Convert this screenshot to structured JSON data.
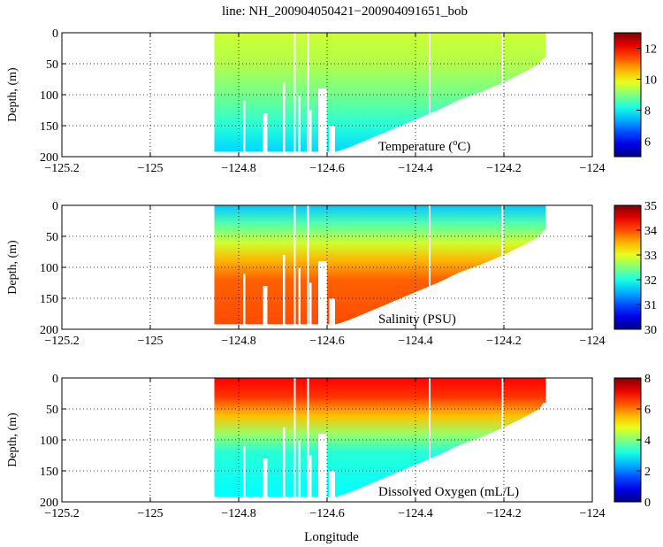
{
  "figure": {
    "title": "line: NH_200904050421−200904091651_bob",
    "xlabel": "Longitude"
  },
  "chart_data": [
    {
      "type": "heatmap",
      "variable": "Temperature",
      "annotation": {
        "pre": "Temperature (",
        "sup": "o",
        "post": "C)"
      },
      "ylabel": "Depth, (m)",
      "xlim": [
        -125.2,
        -124.0
      ],
      "ylim": [
        200,
        0
      ],
      "x_ticks": [
        -125.2,
        -125.0,
        -124.8,
        -124.6,
        -124.4,
        -124.2,
        -124.0
      ],
      "x_tick_labels": [
        "−125.2",
        "−125",
        "−124.8",
        "−124.6",
        "−124.4",
        "−124.2",
        "−124"
      ],
      "y_ticks": [
        0,
        50,
        100,
        150,
        200
      ],
      "colorbar": {
        "colormap": "jet",
        "range": [
          5,
          13
        ],
        "ticks": [
          6,
          8,
          10,
          12
        ]
      },
      "grid": "dotted",
      "profile": [
        {
          "depth": 0,
          "value": 9.6
        },
        {
          "depth": 50,
          "value": 9.4
        },
        {
          "depth": 100,
          "value": 8.9
        },
        {
          "depth": 150,
          "value": 8.3
        },
        {
          "depth": 190,
          "value": 7.7
        }
      ]
    },
    {
      "type": "heatmap",
      "variable": "Salinity",
      "annotation": {
        "pre": "Salinity (PSU)",
        "sup": "",
        "post": ""
      },
      "ylabel": "Depth, (m)",
      "xlim": [
        -125.2,
        -124.0
      ],
      "ylim": [
        200,
        0
      ],
      "x_ticks": [
        -125.2,
        -125.0,
        -124.8,
        -124.6,
        -124.4,
        -124.2,
        -124.0
      ],
      "x_tick_labels": [
        "−125.2",
        "−125",
        "−124.8",
        "−124.6",
        "−124.4",
        "−124.2",
        "−124"
      ],
      "y_ticks": [
        0,
        50,
        100,
        150,
        200
      ],
      "colorbar": {
        "colormap": "jet",
        "range": [
          30,
          35
        ],
        "ticks": [
          30,
          31,
          32,
          33,
          34,
          35
        ]
      },
      "grid": "dotted",
      "profile": [
        {
          "depth": 0,
          "value": 31.6
        },
        {
          "depth": 30,
          "value": 32.3
        },
        {
          "depth": 60,
          "value": 32.9
        },
        {
          "depth": 90,
          "value": 33.5
        },
        {
          "depth": 120,
          "value": 33.9
        },
        {
          "depth": 190,
          "value": 34.0
        }
      ]
    },
    {
      "type": "heatmap",
      "variable": "Dissolved Oxygen",
      "annotation": {
        "pre": "Dissolved Oxygen (mL/L)",
        "sup": "",
        "post": ""
      },
      "ylabel": "Depth, (m)",
      "xlim": [
        -125.2,
        -124.0
      ],
      "ylim": [
        200,
        0
      ],
      "x_ticks": [
        -125.2,
        -125.0,
        -124.8,
        -124.6,
        -124.4,
        -124.2,
        -124.0
      ],
      "x_tick_labels": [
        "−125.2",
        "−125",
        "−124.8",
        "−124.6",
        "−124.4",
        "−124.2",
        "−124"
      ],
      "y_ticks": [
        0,
        50,
        100,
        150,
        200
      ],
      "colorbar": {
        "colormap": "jet",
        "range": [
          0,
          8
        ],
        "ticks": [
          0,
          2,
          4,
          6,
          8
        ]
      },
      "grid": "dotted",
      "profile": [
        {
          "depth": 0,
          "value": 7.0
        },
        {
          "depth": 30,
          "value": 6.6
        },
        {
          "depth": 60,
          "value": 5.5
        },
        {
          "depth": 90,
          "value": 4.2
        },
        {
          "depth": 120,
          "value": 3.3
        },
        {
          "depth": 190,
          "value": 3.0
        }
      ]
    }
  ],
  "section": {
    "x_start": -124.855,
    "bottom_profile": [
      [
        -124.855,
        192
      ],
      [
        -124.62,
        192
      ],
      [
        -124.58,
        192
      ],
      [
        -124.55,
        185
      ],
      [
        -124.5,
        170
      ],
      [
        -124.45,
        155
      ],
      [
        -124.4,
        140
      ],
      [
        -124.35,
        125
      ],
      [
        -124.3,
        108
      ],
      [
        -124.25,
        95
      ],
      [
        -124.2,
        80
      ],
      [
        -124.15,
        62
      ],
      [
        -124.12,
        50
      ],
      [
        -124.11,
        40
      ],
      [
        -124.105,
        40
      ]
    ],
    "casts": [
      {
        "x": [
          -124.79,
          -124.785
        ],
        "depth": 110
      },
      {
        "x": [
          -124.745,
          -124.735
        ],
        "depth": 130
      },
      {
        "x": [
          -124.7,
          -124.695
        ],
        "depth": 80
      },
      {
        "x": [
          -124.665,
          -124.66
        ],
        "depth": 100
      },
      {
        "x": [
          -124.64,
          -124.635
        ],
        "depth": 125
      },
      {
        "x": [
          -124.62,
          -124.6
        ],
        "depth": 90
      },
      {
        "x": [
          -124.595,
          -124.582
        ],
        "depth": 150
      }
    ],
    "gaps": [
      -124.675,
      -124.645,
      -124.37,
      -124.205
    ]
  }
}
